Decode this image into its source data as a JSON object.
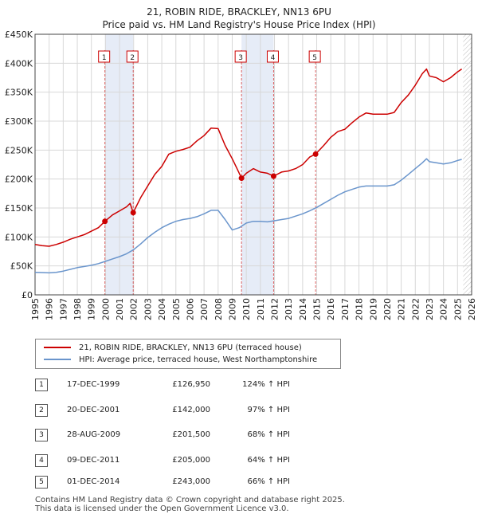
{
  "colors": {
    "price_line": "#cc0000",
    "hpi_line": "#6a95cc",
    "shade": "#e6ecf7",
    "grid": "#d8d8d8",
    "sale_marker": "#cc0000"
  },
  "chart_data": {
    "type": "line",
    "title": "21, ROBIN RIDE, BRACKLEY, NN13 6PU",
    "subtitle": "Price paid vs. HM Land Registry's House Price Index (HPI)",
    "xlabel": "",
    "ylabel": "",
    "xlim": [
      1995,
      2026
    ],
    "ylim": [
      0,
      450000
    ],
    "y_ticks": [
      0,
      50000,
      100000,
      150000,
      200000,
      250000,
      300000,
      350000,
      400000,
      450000
    ],
    "y_tick_labels": [
      "£0",
      "£50K",
      "£100K",
      "£150K",
      "£200K",
      "£250K",
      "£300K",
      "£350K",
      "£400K",
      "£450K"
    ],
    "x_ticks": [
      1995,
      1996,
      1997,
      1998,
      1999,
      2000,
      2001,
      2002,
      2003,
      2004,
      2005,
      2006,
      2007,
      2008,
      2009,
      2010,
      2011,
      2012,
      2013,
      2014,
      2015,
      2016,
      2017,
      2018,
      2019,
      2020,
      2021,
      2022,
      2023,
      2024,
      2025,
      2026
    ],
    "x_tick_labels": [
      "1995",
      "1996",
      "1997",
      "1998",
      "1999",
      "2000",
      "2001",
      "2002",
      "2003",
      "2004",
      "2005",
      "2006",
      "2007",
      "2008",
      "2009",
      "2010",
      "2011",
      "2012",
      "2013",
      "2014",
      "2015",
      "2016",
      "2017",
      "2018",
      "2019",
      "2020",
      "2021",
      "2022",
      "2023",
      "2024",
      "2025",
      "2026"
    ],
    "grid": true,
    "legend_position": "bottom-left",
    "shaded_spans": [
      [
        1999.96,
        2001.97
      ],
      [
        2009.66,
        2011.94
      ]
    ],
    "future_hatch_from": 2025.4,
    "series": [
      {
        "name": "21, ROBIN RIDE, BRACKLEY, NN13 6PU (terraced house)",
        "x": [
          1995.0,
          1995.5,
          1996.0,
          1996.5,
          1997.0,
          1997.5,
          1998.0,
          1998.5,
          1999.0,
          1999.5,
          1999.96,
          2000.5,
          2001.0,
          2001.5,
          2001.75,
          2001.97,
          2002.5,
          2003.0,
          2003.5,
          2004.0,
          2004.5,
          2005.0,
          2005.5,
          2006.0,
          2006.5,
          2007.0,
          2007.5,
          2008.0,
          2008.5,
          2009.0,
          2009.3,
          2009.66,
          2010.0,
          2010.5,
          2011.0,
          2011.5,
          2011.94,
          2012.5,
          2013.0,
          2013.5,
          2014.0,
          2014.5,
          2014.92,
          2015.5,
          2016.0,
          2016.5,
          2017.0,
          2017.5,
          2018.0,
          2018.5,
          2019.0,
          2019.5,
          2020.0,
          2020.5,
          2021.0,
          2021.5,
          2022.0,
          2022.5,
          2022.8,
          2023.0,
          2023.5,
          2024.0,
          2024.5,
          2025.0,
          2025.3
        ],
        "values": [
          87000,
          85000,
          84000,
          87000,
          91000,
          96000,
          100000,
          104000,
          110000,
          116000,
          126950,
          138000,
          145000,
          152000,
          158000,
          142000,
          168000,
          188000,
          208000,
          222000,
          243000,
          248000,
          251000,
          255000,
          266000,
          275000,
          288000,
          287000,
          258000,
          235000,
          220000,
          201500,
          210000,
          218000,
          212000,
          210000,
          205000,
          212000,
          214000,
          218000,
          225000,
          238000,
          243000,
          258000,
          272000,
          282000,
          286000,
          297000,
          307000,
          314000,
          312000,
          312000,
          312000,
          315000,
          332000,
          345000,
          362000,
          382000,
          390000,
          378000,
          375000,
          368000,
          375000,
          385000,
          390000
        ]
      },
      {
        "name": "HPI: Average price, terraced house, West Northamptonshire",
        "x": [
          1995.0,
          1995.5,
          1996.0,
          1996.5,
          1997.0,
          1997.5,
          1998.0,
          1998.5,
          1999.0,
          1999.5,
          2000.0,
          2000.5,
          2001.0,
          2001.5,
          2002.0,
          2002.5,
          2003.0,
          2003.5,
          2004.0,
          2004.5,
          2005.0,
          2005.5,
          2006.0,
          2006.5,
          2007.0,
          2007.5,
          2008.0,
          2008.5,
          2009.0,
          2009.5,
          2010.0,
          2010.5,
          2011.0,
          2011.5,
          2012.0,
          2012.5,
          2013.0,
          2013.5,
          2014.0,
          2014.5,
          2015.0,
          2015.5,
          2016.0,
          2016.5,
          2017.0,
          2017.5,
          2018.0,
          2018.5,
          2019.0,
          2019.5,
          2020.0,
          2020.5,
          2021.0,
          2021.5,
          2022.0,
          2022.5,
          2022.8,
          2023.0,
          2023.5,
          2024.0,
          2024.5,
          2025.0,
          2025.3
        ],
        "values": [
          39000,
          38500,
          38000,
          39000,
          41000,
          44000,
          47000,
          49000,
          51000,
          54000,
          58000,
          62000,
          66000,
          71000,
          78000,
          88000,
          99000,
          108000,
          116000,
          122000,
          127000,
          130000,
          132000,
          135000,
          140000,
          146000,
          146000,
          130000,
          112000,
          116000,
          124000,
          127000,
          127000,
          126000,
          128000,
          130000,
          132000,
          136000,
          140000,
          145000,
          151000,
          158000,
          165000,
          172000,
          178000,
          182000,
          186000,
          188000,
          188000,
          188000,
          188000,
          190000,
          198000,
          208000,
          218000,
          228000,
          235000,
          230000,
          228000,
          226000,
          228000,
          232000,
          234000
        ]
      }
    ],
    "sales": [
      {
        "num": "1",
        "x": 1999.96,
        "value": 126950
      },
      {
        "num": "2",
        "x": 2001.97,
        "value": 142000
      },
      {
        "num": "3",
        "x": 2009.66,
        "value": 201500
      },
      {
        "num": "4",
        "x": 2011.94,
        "value": 205000
      },
      {
        "num": "5",
        "x": 2014.92,
        "value": 243000
      }
    ]
  },
  "legend": {
    "items": [
      {
        "label": "21, ROBIN RIDE, BRACKLEY, NN13 6PU (terraced house)"
      },
      {
        "label": "HPI: Average price, terraced house, West Northamptonshire"
      }
    ]
  },
  "sales_table": [
    {
      "num": "1",
      "date": "17-DEC-1999",
      "price": "£126,950",
      "hpi": "124% ↑ HPI"
    },
    {
      "num": "2",
      "date": "20-DEC-2001",
      "price": "£142,000",
      "hpi": "97% ↑ HPI"
    },
    {
      "num": "3",
      "date": "28-AUG-2009",
      "price": "£201,500",
      "hpi": "68% ↑ HPI"
    },
    {
      "num": "4",
      "date": "09-DEC-2011",
      "price": "£205,000",
      "hpi": "64% ↑ HPI"
    },
    {
      "num": "5",
      "date": "01-DEC-2014",
      "price": "£243,000",
      "hpi": "66% ↑ HPI"
    }
  ],
  "footer": {
    "line1": "Contains HM Land Registry data © Crown copyright and database right 2025.",
    "line2": "This data is licensed under the Open Government Licence v3.0."
  }
}
